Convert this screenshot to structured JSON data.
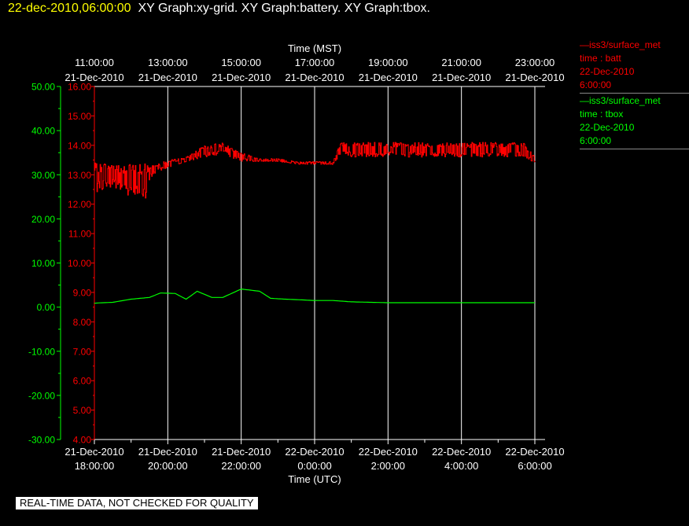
{
  "header": {
    "datetime": "22-dec-2010,06:00:00",
    "graphs": "XY Graph:xy-grid.  XY Graph:battery.  XY Graph:tbox."
  },
  "legend": [
    {
      "title": "iss3/surface_met",
      "var": "time : batt",
      "date": "22-Dec-2010",
      "time": "6:00:00",
      "color": "#ff0000"
    },
    {
      "title": "iss3/surface_met",
      "var": "time : tbox",
      "date": "22-Dec-2010",
      "time": "6:00:00",
      "color": "#00ff00"
    }
  ],
  "footer_note": "REAL-TIME DATA, NOT CHECKED FOR QUALITY",
  "chart_data": {
    "type": "line",
    "top_axis": {
      "title": "Time (MST)",
      "ticks": [
        {
          "time": "11:00:00",
          "date": "21-Dec-2010"
        },
        {
          "time": "13:00:00",
          "date": "21-Dec-2010"
        },
        {
          "time": "15:00:00",
          "date": "21-Dec-2010"
        },
        {
          "time": "17:00:00",
          "date": "21-Dec-2010"
        },
        {
          "time": "19:00:00",
          "date": "21-Dec-2010"
        },
        {
          "time": "21:00:00",
          "date": "21-Dec-2010"
        },
        {
          "time": "23:00:00",
          "date": "21-Dec-2010"
        }
      ]
    },
    "bottom_axis": {
      "title": "Time (UTC)",
      "ticks": [
        {
          "date": "21-Dec-2010",
          "time": "18:00:00"
        },
        {
          "date": "21-Dec-2010",
          "time": "20:00:00"
        },
        {
          "date": "21-Dec-2010",
          "time": "22:00:00"
        },
        {
          "date": "22-Dec-2010",
          "time": "0:00:00"
        },
        {
          "date": "22-Dec-2010",
          "time": "2:00:00"
        },
        {
          "date": "22-Dec-2010",
          "time": "4:00:00"
        },
        {
          "date": "22-Dec-2010",
          "time": "6:00:00"
        }
      ]
    },
    "x_range_hours_utc": [
      0,
      12
    ],
    "grid": "vertical",
    "left_axis_outer": {
      "color": "#00ff00",
      "ylim": [
        -30,
        50
      ],
      "ticks": [
        "50.00",
        "40.00",
        "30.00",
        "20.00",
        "10.00",
        "0.00",
        "-10.00",
        "-20.00",
        "-30.00"
      ]
    },
    "left_axis_inner": {
      "color": "#ff0000",
      "ylim": [
        4,
        16
      ],
      "ticks": [
        "16.00",
        "15.00",
        "14.00",
        "13.00",
        "12.00",
        "11.00",
        "10.00",
        "9.00",
        "8.00",
        "7.00",
        "6.00",
        "5.00",
        "4.00"
      ]
    },
    "series": [
      {
        "name": "time : batt",
        "color": "#ff0000",
        "axis": "inner",
        "style": "noisy",
        "x": [
          0,
          0.5,
          1.0,
          1.4,
          1.5,
          1.8,
          2.5,
          3.0,
          3.5,
          4.0,
          4.5,
          5.0,
          5.5,
          6.0,
          6.5,
          6.7,
          7.0,
          8.0,
          9.0,
          10.0,
          11.0,
          11.7,
          12.0
        ],
        "y": [
          12.9,
          13.0,
          12.8,
          12.8,
          13.1,
          13.3,
          13.5,
          13.8,
          13.9,
          13.6,
          13.5,
          13.5,
          13.4,
          13.4,
          13.4,
          13.9,
          13.85,
          13.85,
          13.85,
          13.85,
          13.85,
          13.85,
          13.5
        ],
        "noise": [
          0.5,
          0.45,
          0.55,
          0.6,
          0.25,
          0.15,
          0.1,
          0.2,
          0.2,
          0.15,
          0.05,
          0.05,
          0.05,
          0.05,
          0.05,
          0.2,
          0.25,
          0.25,
          0.25,
          0.25,
          0.25,
          0.25,
          0.1
        ]
      },
      {
        "name": "time : tbox",
        "color": "#00ff00",
        "axis": "outer",
        "style": "smooth",
        "x": [
          0,
          0.5,
          1.0,
          1.5,
          1.8,
          2.2,
          2.5,
          2.8,
          3.2,
          3.5,
          4.0,
          4.5,
          4.8,
          5.2,
          5.5,
          6.0,
          6.5,
          7.0,
          8.0,
          9.0,
          10.0,
          11.0,
          12.0
        ],
        "y": [
          0.9,
          1.1,
          1.8,
          2.2,
          3.2,
          3.1,
          1.8,
          3.6,
          2.2,
          2.2,
          4.1,
          3.6,
          2.0,
          1.8,
          1.7,
          1.5,
          1.5,
          1.2,
          1.0,
          1.0,
          1.0,
          1.0,
          1.0
        ]
      }
    ]
  }
}
